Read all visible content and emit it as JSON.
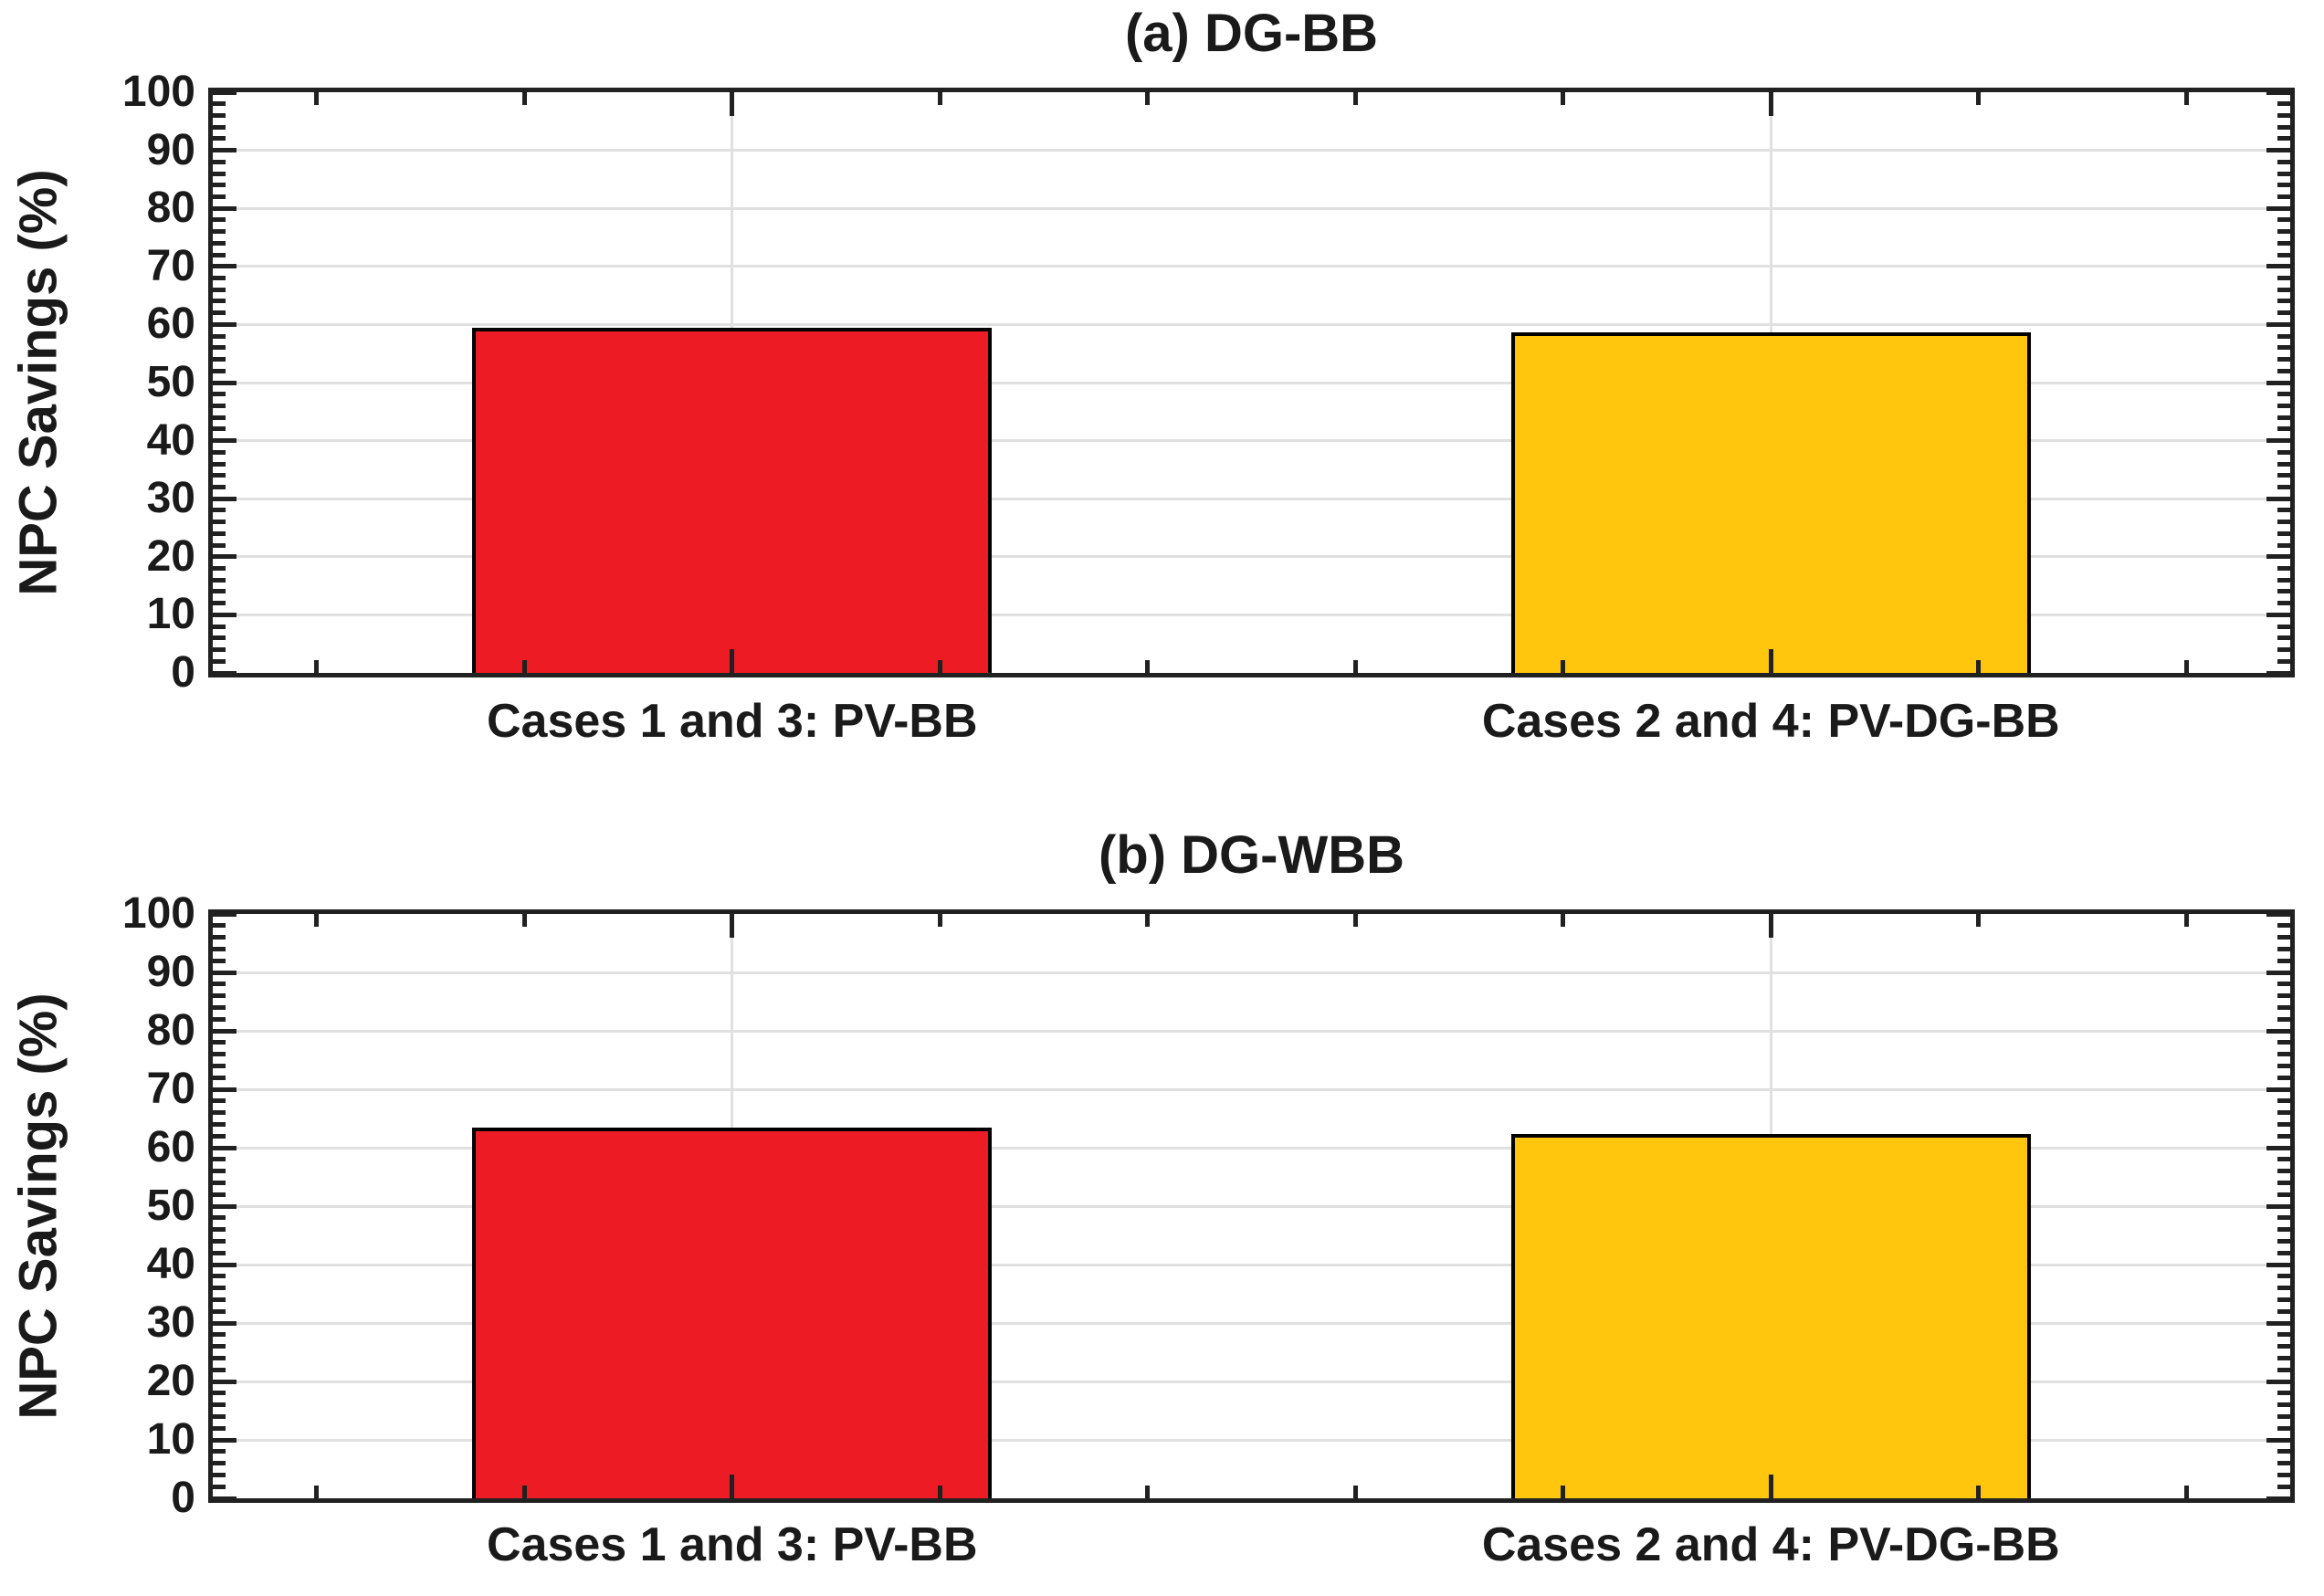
{
  "figure": {
    "background": "#FFFFFF",
    "axis_color": "#212121",
    "grid_color": "#E0E0E0",
    "text_color": "#1A1A1A"
  },
  "chart_data": [
    {
      "type": "bar",
      "title": "(a) DG-BB",
      "ylabel": "NPC Savings (%)",
      "xlabel": "",
      "categories": [
        "Cases 1 and 3: PV-BB",
        "Cases 2 and 4: PV-DG-BB"
      ],
      "values": [
        59.4,
        58.6
      ],
      "bar_colors": [
        "#ED1C24",
        "#FFC60D"
      ],
      "bar_edge_color": "#000000",
      "ylim": [
        0,
        100
      ],
      "xlim": [
        0.5,
        2.5
      ],
      "bar_centers": [
        1,
        2
      ],
      "bar_width": 0.5,
      "yticks": [
        0,
        10,
        20,
        30,
        40,
        50,
        60,
        70,
        80,
        90,
        100
      ],
      "y_minor_step": 2,
      "x_ticks": [
        0.6,
        0.8,
        1.0,
        1.2,
        1.4,
        1.6,
        1.8,
        2.0,
        2.2,
        2.4
      ],
      "x_major_ticks": [
        1,
        2
      ],
      "grid": "on",
      "legend": "none"
    },
    {
      "type": "bar",
      "title": "(b) DG-WBB",
      "ylabel": "NPC Savings (%)",
      "xlabel": "",
      "categories": [
        "Cases 1 and 3: PV-BB",
        "Cases 2 and 4: PV-DG-BB"
      ],
      "values": [
        63.5,
        62.3
      ],
      "bar_colors": [
        "#ED1C24",
        "#FFC60D"
      ],
      "bar_edge_color": "#000000",
      "ylim": [
        0,
        100
      ],
      "xlim": [
        0.5,
        2.5
      ],
      "bar_centers": [
        1,
        2
      ],
      "bar_width": 0.5,
      "yticks": [
        0,
        10,
        20,
        30,
        40,
        50,
        60,
        70,
        80,
        90,
        100
      ],
      "y_minor_step": 2,
      "x_ticks": [
        0.6,
        0.8,
        1.0,
        1.2,
        1.4,
        1.6,
        1.8,
        2.0,
        2.2,
        2.4
      ],
      "x_major_ticks": [
        1,
        2
      ],
      "grid": "on",
      "legend": "none"
    }
  ]
}
